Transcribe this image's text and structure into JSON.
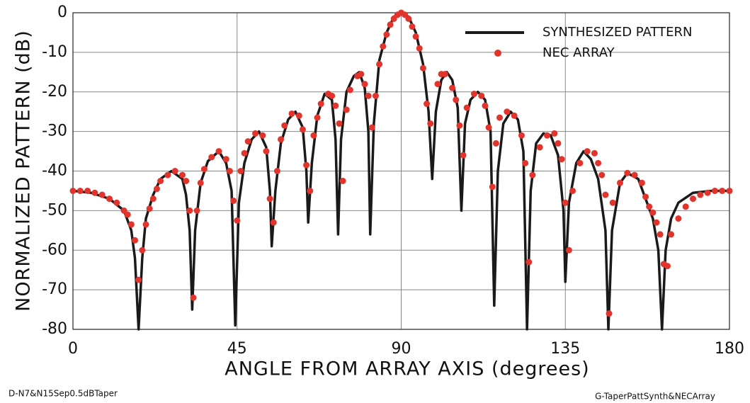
{
  "chart_data": {
    "type": "line",
    "ylabel": "NORMALIZED PATTERN (dB)",
    "xlabel": "ANGLE FROM ARRAY AXIS (degrees)",
    "left_note": "D-N7&N15Sep0.5dBTaper",
    "right_note": "G-TaperPattSynth&NECArray",
    "xlim": [
      0,
      180
    ],
    "ylim": [
      -80,
      0
    ],
    "xticks": [
      0,
      45,
      90,
      135,
      180
    ],
    "yticks": [
      0,
      -10,
      -20,
      -30,
      -40,
      -50,
      -60,
      -70,
      -80
    ],
    "grid": true,
    "legend": "upper right",
    "series": [
      {
        "name": "SYNTHESIZED PATTERN",
        "color": "#1a1a1a",
        "marker": "none",
        "x": [
          0,
          5,
          10,
          14,
          16,
          17,
          18,
          19,
          20,
          22,
          24,
          27,
          30,
          31,
          32,
          32.7,
          33.5,
          35,
          37,
          40,
          42,
          43.5,
          44.5,
          45.5,
          47,
          49,
          51,
          53,
          54,
          54.5,
          55.5,
          57,
          59,
          61,
          63,
          64,
          64.5,
          65.5,
          67,
          69,
          71,
          72,
          72.7,
          73.5,
          75,
          77,
          78.5,
          80,
          81,
          81.5,
          82.5,
          84,
          86,
          88,
          90,
          92,
          94,
          96,
          97.5,
          98.5,
          99.5,
          101,
          102.5,
          104,
          105.5,
          106.5,
          107.5,
          109,
          111,
          113,
          114.5,
          115.5,
          116.5,
          118,
          120,
          122,
          123.5,
          124.5,
          125.5,
          127,
          129,
          131,
          133,
          134.5,
          135,
          136,
          138,
          140,
          142,
          144,
          146,
          146.8,
          147.8,
          150,
          152,
          155,
          157,
          159,
          160.5,
          161.5,
          162.5,
          164,
          166,
          170,
          175,
          180
        ],
        "values": [
          -45,
          -45.5,
          -47,
          -50,
          -55,
          -62,
          -80,
          -62,
          -52,
          -46,
          -42,
          -40,
          -42,
          -46,
          -55,
          -75,
          -55,
          -43,
          -37.5,
          -35,
          -38,
          -45,
          -79,
          -48,
          -38,
          -32,
          -30,
          -34,
          -45,
          -59,
          -45,
          -33,
          -27,
          -25,
          -29,
          -40,
          -53,
          -38,
          -26,
          -20.5,
          -22,
          -32,
          -56,
          -32,
          -20,
          -16,
          -15,
          -19,
          -30,
          -56,
          -28,
          -12,
          -5,
          -1,
          0,
          -1,
          -5,
          -13,
          -25,
          -42,
          -25,
          -17,
          -15,
          -17,
          -24,
          -50,
          -28,
          -22,
          -20,
          -22,
          -30,
          -74,
          -40,
          -28,
          -25,
          -27,
          -35,
          -80,
          -45,
          -33,
          -30.5,
          -31,
          -36,
          -50,
          -68,
          -48,
          -38,
          -35,
          -37,
          -42,
          -55,
          -80,
          -55,
          -43,
          -40.5,
          -42,
          -47,
          -52,
          -60,
          -80,
          -60,
          -52,
          -48,
          -45.5,
          -45,
          -45
        ]
      },
      {
        "name": "NEC ARRAY",
        "color": "#e0342c",
        "marker": "circle",
        "x": [
          0,
          2,
          4,
          6,
          8,
          10,
          12,
          14,
          15,
          16,
          17,
          18,
          19,
          20,
          21,
          22,
          23,
          24,
          26,
          28,
          30,
          31,
          32,
          33,
          34,
          35,
          36,
          38,
          40,
          42,
          43,
          44,
          45,
          46,
          47,
          48,
          50,
          52,
          53,
          54,
          55,
          56,
          57,
          58,
          60,
          62,
          63,
          64,
          65,
          66,
          67,
          68,
          70,
          71,
          72,
          73,
          74,
          75,
          76,
          78,
          79,
          80,
          81,
          82,
          83,
          84,
          85,
          86,
          87,
          88,
          89,
          90,
          91,
          92,
          93,
          94,
          95,
          96,
          97,
          98,
          100,
          101,
          102,
          104,
          105,
          106,
          107,
          108,
          110,
          112,
          113,
          114,
          115,
          116,
          117,
          119,
          121,
          123,
          124,
          125,
          126,
          128,
          130,
          132,
          133,
          134,
          135,
          136,
          137,
          139,
          141,
          143,
          144,
          145,
          146,
          147,
          148,
          150,
          152,
          154,
          156,
          157,
          158,
          159,
          160,
          161,
          162,
          163,
          164,
          166,
          168,
          170,
          172,
          174,
          176,
          178,
          180
        ],
        "values": [
          -45,
          -45,
          -45,
          -45.5,
          -46,
          -47,
          -48,
          -50,
          -51,
          -53.5,
          -57.5,
          -67.5,
          -60,
          -53.5,
          -49.5,
          -47,
          -44.5,
          -42.5,
          -41,
          -40,
          -41,
          -42.5,
          -50,
          -72,
          -50,
          -43,
          -39.5,
          -36.5,
          -35,
          -37,
          -40,
          -47.5,
          -52.5,
          -40,
          -35.5,
          -32.5,
          -30.5,
          -31,
          -35,
          -47,
          -53,
          -40,
          -32,
          -28.5,
          -25.5,
          -26,
          -29.5,
          -38.5,
          -45,
          -31,
          -26.5,
          -23,
          -20.5,
          -21,
          -23.5,
          -28,
          -42.5,
          -24.5,
          -19.5,
          -16,
          -15.5,
          -18,
          -21,
          -29,
          -21,
          -13,
          -8.5,
          -5.5,
          -3,
          -1.5,
          -0.5,
          0,
          -0.5,
          -1.5,
          -3.5,
          -6,
          -9,
          -14,
          -23,
          -28,
          -18,
          -15.5,
          -15.5,
          -19,
          -22,
          -28.5,
          -36,
          -24,
          -20.5,
          -21,
          -23.5,
          -29,
          -44,
          -33,
          -26.5,
          -25,
          -26,
          -31,
          -38,
          -63,
          -41,
          -34,
          -31,
          -30.5,
          -33,
          -37,
          -48,
          -60,
          -45,
          -38,
          -35,
          -35.5,
          -38,
          -41,
          -46,
          -76,
          -48,
          -43,
          -40.5,
          -41,
          -43,
          -46.5,
          -49,
          -50.5,
          -53,
          -56,
          -63.5,
          -64,
          -56,
          -52,
          -49,
          -47,
          -46,
          -45.5,
          -45,
          -45,
          -45
        ]
      }
    ]
  }
}
